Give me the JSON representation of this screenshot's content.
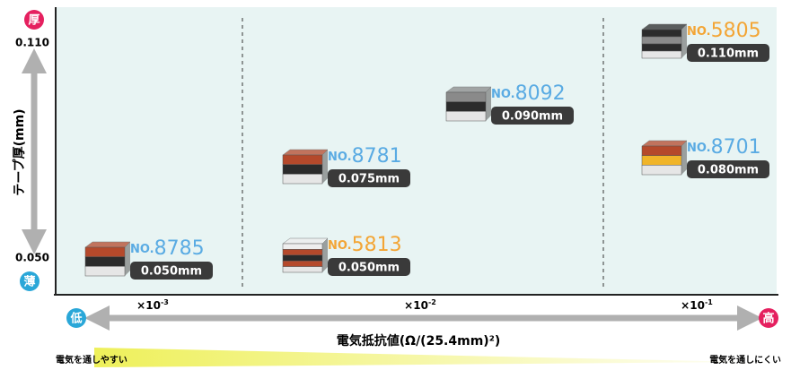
{
  "axis": {
    "thick": "厚",
    "thin": "薄",
    "top_value": "0.110",
    "bottom_value": "0.050",
    "y_title": "テープ厚(mm)",
    "low": "低",
    "high": "高",
    "x_title": "電気抵抗値(Ω/(25.4mm)²)",
    "left_caption": "電気を通しやすい",
    "right_caption": "電気を通しにくい",
    "scales": [
      {
        "base": "×10",
        "exp": "-3"
      },
      {
        "base": "×10",
        "exp": "-2"
      },
      {
        "base": "×10",
        "exp": "-1"
      }
    ]
  },
  "items": [
    {
      "prefix": "NO.",
      "number": "8785",
      "thickness": "0.050mm",
      "color": "#5aabe3"
    },
    {
      "prefix": "NO.",
      "number": "5813",
      "thickness": "0.050mm",
      "color": "#f3a535"
    },
    {
      "prefix": "NO.",
      "number": "8781",
      "thickness": "0.075mm",
      "color": "#5aabe3"
    },
    {
      "prefix": "NO.",
      "number": "8092",
      "thickness": "0.090mm",
      "color": "#5aabe3"
    },
    {
      "prefix": "NO.",
      "number": "5805",
      "thickness": "0.110mm",
      "color": "#f3a535"
    },
    {
      "prefix": "NO.",
      "number": "8701",
      "thickness": "0.080mm",
      "color": "#5aabe3"
    }
  ]
}
